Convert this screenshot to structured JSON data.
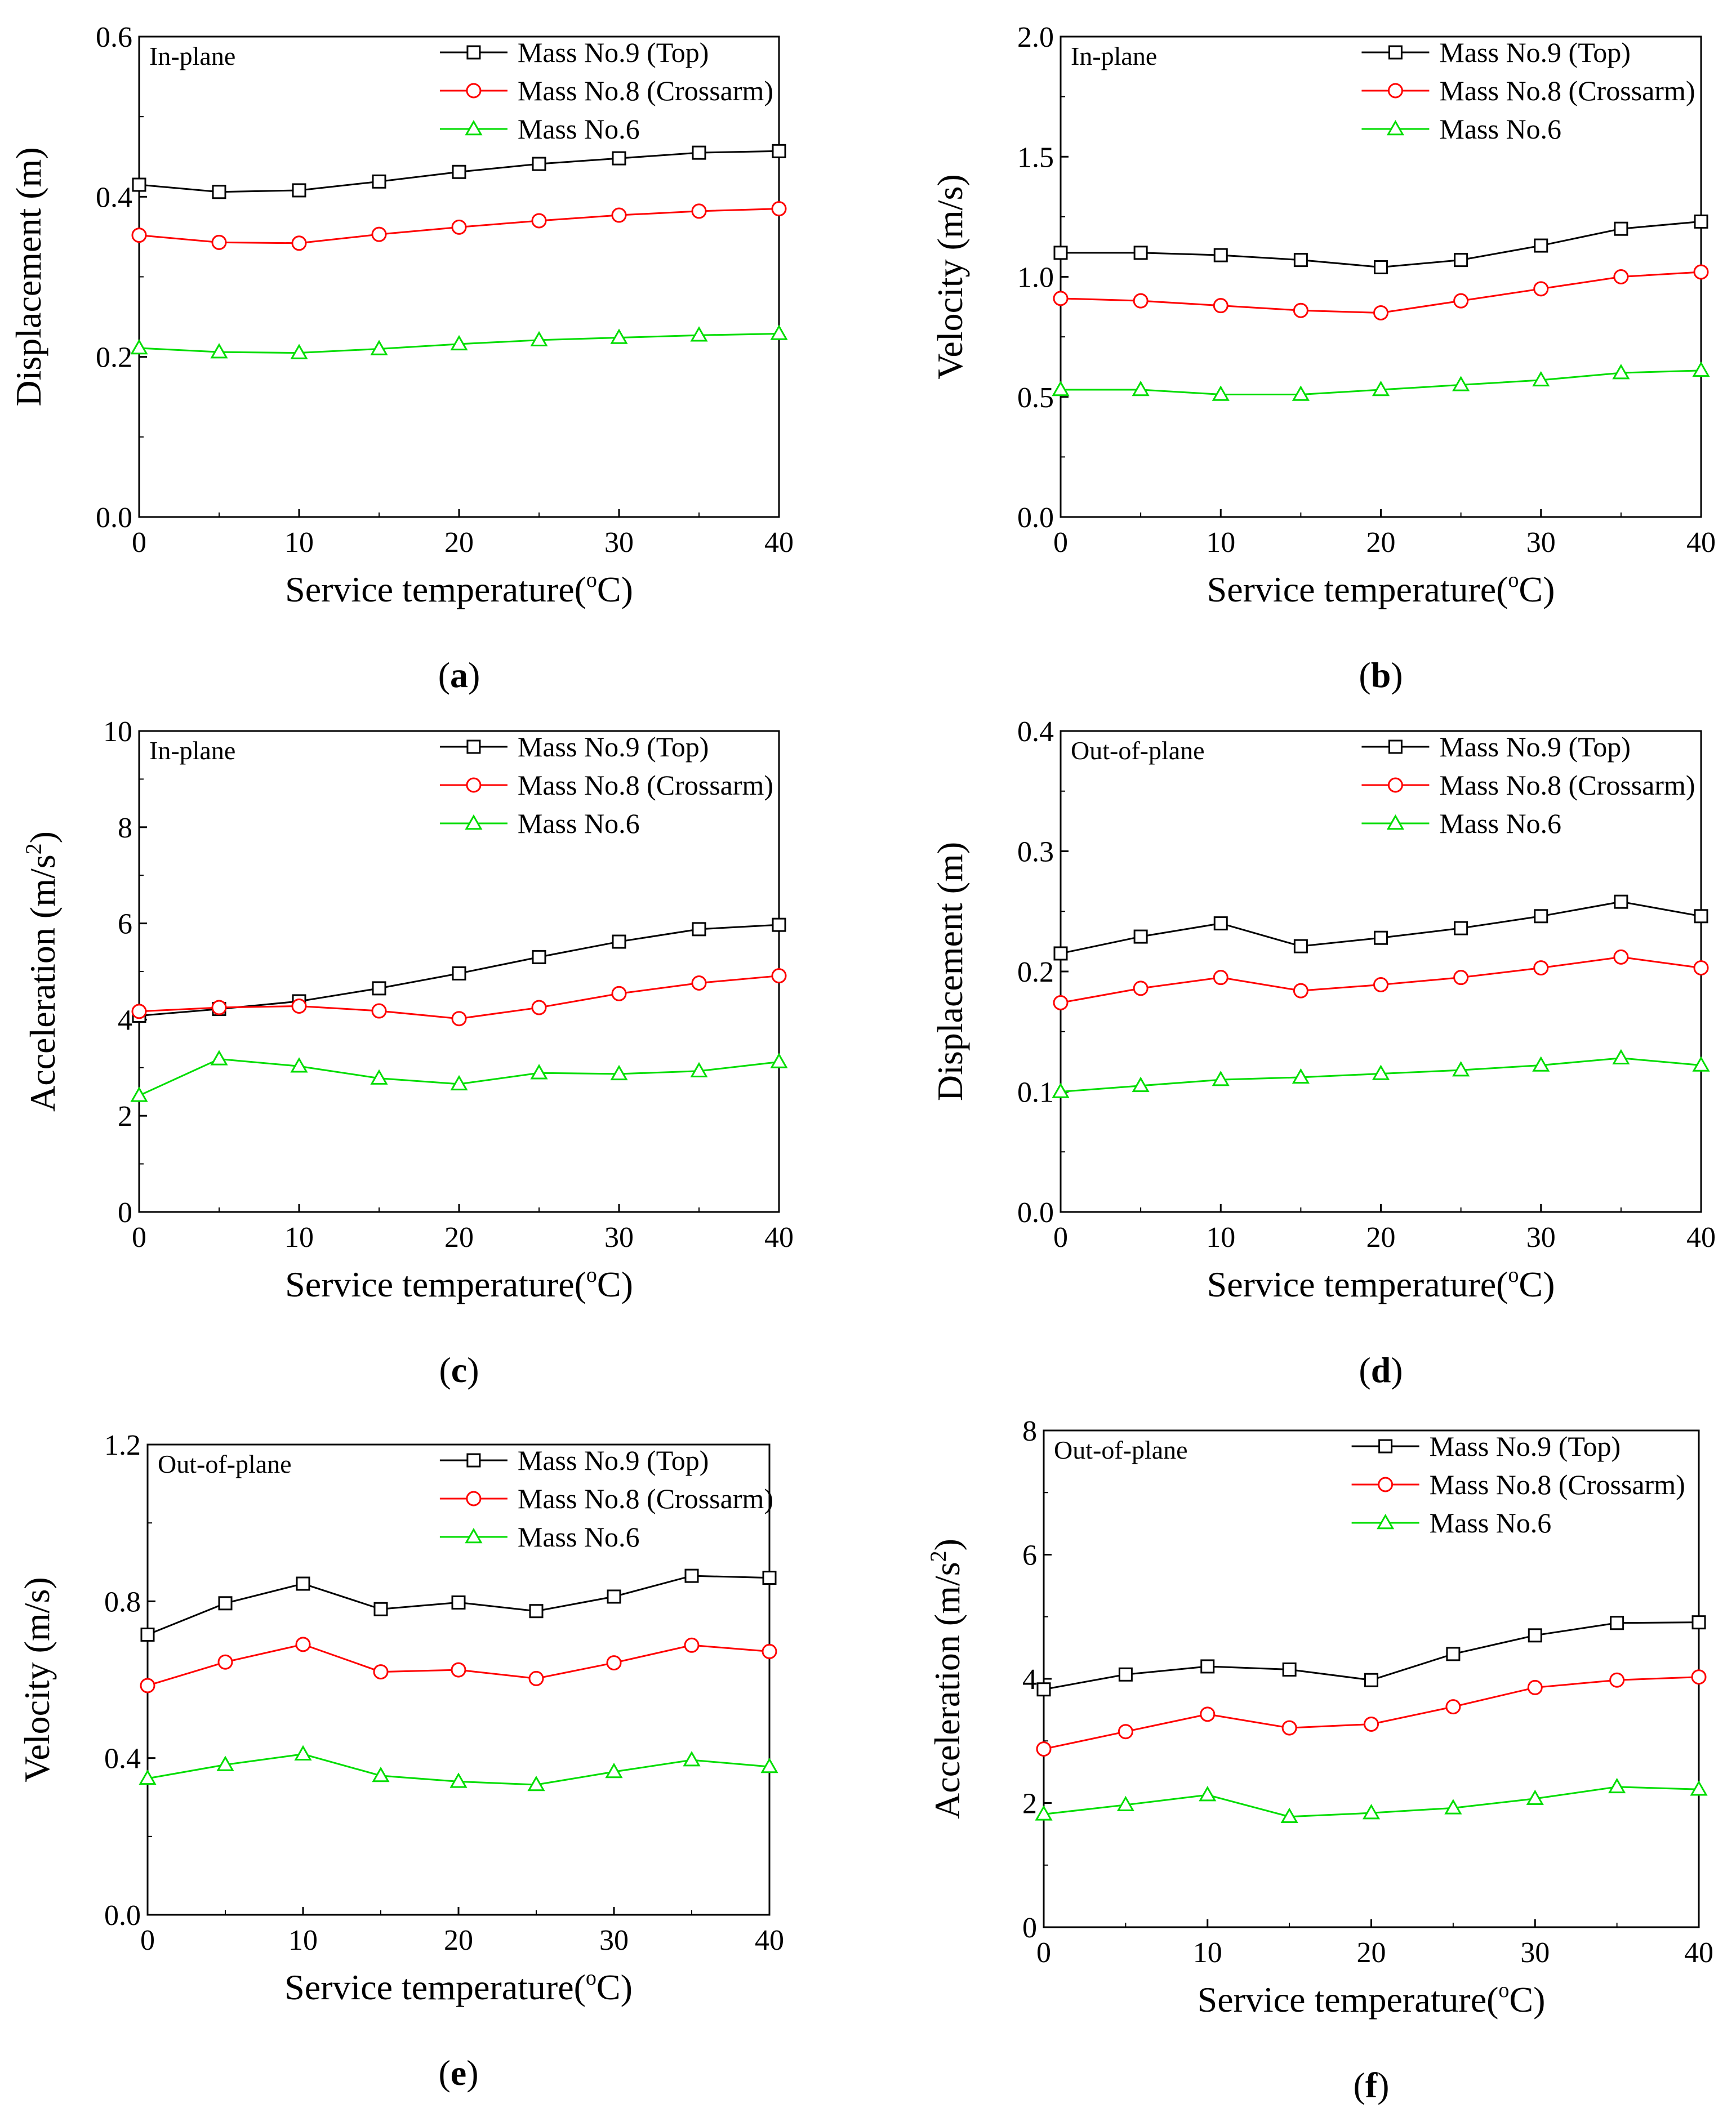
{
  "figure": {
    "series_colors": {
      "top": "#000000",
      "crossarm": "#ff0000",
      "m6": "#00dd00"
    }
  },
  "chart_data": [
    {
      "id": "a",
      "type": "line",
      "panel_label": "a",
      "annotation": "In-plane",
      "xlabel": "Service temperature(°C)",
      "xlabel_main": "Service temperature(",
      "xlabel_deg": "o",
      "xlabel_tail": "C)",
      "ylabel": "Displacement (m)",
      "ylabel_main": "Displacement (m)",
      "ylabel_sup": "",
      "ylabel_tail": "",
      "xlim": [
        0,
        40
      ],
      "ylim": [
        0,
        0.6
      ],
      "xticks": [
        0,
        10,
        20,
        30,
        40
      ],
      "xtick_labels": [
        "0",
        "10",
        "20",
        "30",
        "40"
      ],
      "yticks": [
        0,
        0.2,
        0.4,
        0.6
      ],
      "ytick_labels": [
        "0.0",
        "0.2",
        "0.4",
        "0.6"
      ],
      "x": [
        0,
        5,
        10,
        15,
        20,
        25,
        30,
        35,
        40
      ],
      "series": [
        {
          "name": "Mass No.9 (Top)",
          "marker": "square",
          "color": "#000000",
          "values": [
            0.415,
            0.406,
            0.408,
            0.419,
            0.431,
            0.441,
            0.448,
            0.455,
            0.457
          ]
        },
        {
          "name": "Mass No.8 (Crossarm)",
          "marker": "circle",
          "color": "#ff0000",
          "values": [
            0.352,
            0.343,
            0.342,
            0.353,
            0.362,
            0.37,
            0.377,
            0.382,
            0.385
          ]
        },
        {
          "name": "Mass No.6",
          "marker": "triangle",
          "color": "#00dd00",
          "values": [
            0.211,
            0.206,
            0.205,
            0.21,
            0.216,
            0.221,
            0.224,
            0.227,
            0.229
          ]
        }
      ]
    },
    {
      "id": "b",
      "type": "line",
      "panel_label": "b",
      "annotation": "In-plane",
      "xlabel": "Service temperature(°C)",
      "xlabel_main": "Service temperature(",
      "xlabel_deg": "o",
      "xlabel_tail": "C)",
      "ylabel": "Velocity (m/s)",
      "ylabel_main": "Velocity (m/s)",
      "ylabel_sup": "",
      "ylabel_tail": "",
      "xlim": [
        0,
        40
      ],
      "ylim": [
        0,
        2.0
      ],
      "xticks": [
        0,
        10,
        20,
        30,
        40
      ],
      "xtick_labels": [
        "0",
        "10",
        "20",
        "30",
        "40"
      ],
      "yticks": [
        0,
        0.5,
        1.0,
        1.5,
        2.0
      ],
      "ytick_labels": [
        "0.0",
        "0.5",
        "1.0",
        "1.5",
        "2.0"
      ],
      "x": [
        0,
        5,
        10,
        15,
        20,
        25,
        30,
        35,
        40
      ],
      "series": [
        {
          "name": "Mass No.9 (Top)",
          "marker": "square",
          "color": "#000000",
          "values": [
            1.1,
            1.1,
            1.09,
            1.07,
            1.04,
            1.07,
            1.13,
            1.2,
            1.23
          ]
        },
        {
          "name": "Mass No.8 (Crossarm)",
          "marker": "circle",
          "color": "#ff0000",
          "values": [
            0.91,
            0.9,
            0.88,
            0.86,
            0.85,
            0.9,
            0.95,
            1.0,
            1.02
          ]
        },
        {
          "name": "Mass No.6",
          "marker": "triangle",
          "color": "#00dd00",
          "values": [
            0.53,
            0.53,
            0.51,
            0.51,
            0.53,
            0.55,
            0.57,
            0.6,
            0.61
          ]
        }
      ]
    },
    {
      "id": "c",
      "type": "line",
      "panel_label": "c",
      "annotation": "In-plane",
      "xlabel": "Service temperature(°C)",
      "xlabel_main": "Service temperature(",
      "xlabel_deg": "o",
      "xlabel_tail": "C)",
      "ylabel": "Acceleration (m/s²)",
      "ylabel_main": "Acceleration (m/s",
      "ylabel_sup": "2",
      "ylabel_tail": ")",
      "xlim": [
        0,
        40
      ],
      "ylim": [
        0,
        10
      ],
      "xticks": [
        0,
        10,
        20,
        30,
        40
      ],
      "xtick_labels": [
        "0",
        "10",
        "20",
        "30",
        "40"
      ],
      "yticks": [
        0,
        2,
        4,
        6,
        8,
        10
      ],
      "ytick_labels": [
        "0",
        "2",
        "4",
        "6",
        "8",
        "10"
      ],
      "x": [
        0,
        5,
        10,
        15,
        20,
        25,
        30,
        35,
        40
      ],
      "series": [
        {
          "name": "Mass No.9 (Top)",
          "marker": "square",
          "color": "#000000",
          "values": [
            4.08,
            4.22,
            4.38,
            4.65,
            4.96,
            5.3,
            5.62,
            5.88,
            5.97
          ]
        },
        {
          "name": "Mass No.8 (Crossarm)",
          "marker": "circle",
          "color": "#ff0000",
          "values": [
            4.17,
            4.25,
            4.28,
            4.18,
            4.02,
            4.25,
            4.54,
            4.76,
            4.91
          ]
        },
        {
          "name": "Mass No.6",
          "marker": "triangle",
          "color": "#00dd00",
          "values": [
            2.42,
            3.18,
            3.03,
            2.78,
            2.66,
            2.89,
            2.87,
            2.93,
            3.12
          ]
        }
      ]
    },
    {
      "id": "d",
      "type": "line",
      "panel_label": "d",
      "annotation": "Out-of-plane",
      "xlabel": "Service temperature(°C)",
      "xlabel_main": "Service temperature(",
      "xlabel_deg": "o",
      "xlabel_tail": "C)",
      "ylabel": "Displacement (m)",
      "ylabel_main": "Displacement (m)",
      "ylabel_sup": "",
      "ylabel_tail": "",
      "xlim": [
        0,
        40
      ],
      "ylim": [
        0,
        0.4
      ],
      "xticks": [
        0,
        10,
        20,
        30,
        40
      ],
      "xtick_labels": [
        "0",
        "10",
        "20",
        "30",
        "40"
      ],
      "yticks": [
        0,
        0.1,
        0.2,
        0.3,
        0.4
      ],
      "ytick_labels": [
        "0.0",
        "0.1",
        "0.2",
        "0.3",
        "0.4"
      ],
      "x": [
        0,
        5,
        10,
        15,
        20,
        25,
        30,
        35,
        40
      ],
      "series": [
        {
          "name": "Mass No.9 (Top)",
          "marker": "square",
          "color": "#000000",
          "values": [
            0.215,
            0.229,
            0.24,
            0.221,
            0.228,
            0.236,
            0.246,
            0.258,
            0.246
          ]
        },
        {
          "name": "Mass No.8 (Crossarm)",
          "marker": "circle",
          "color": "#ff0000",
          "values": [
            0.174,
            0.186,
            0.195,
            0.184,
            0.189,
            0.195,
            0.203,
            0.212,
            0.203
          ]
        },
        {
          "name": "Mass No.6",
          "marker": "triangle",
          "color": "#00dd00",
          "values": [
            0.1,
            0.105,
            0.11,
            0.112,
            0.115,
            0.118,
            0.122,
            0.128,
            0.122
          ]
        }
      ]
    },
    {
      "id": "e",
      "type": "line",
      "panel_label": "e",
      "annotation": "Out-of-plane",
      "xlabel": "Service temperature(°C)",
      "xlabel_main": "Service temperature(",
      "xlabel_deg": "o",
      "xlabel_tail": "C)",
      "ylabel": "Velocity (m/s)",
      "ylabel_main": "Velocity (m/s)",
      "ylabel_sup": "",
      "ylabel_tail": "",
      "xlim": [
        0,
        40
      ],
      "ylim": [
        0,
        1.2
      ],
      "xticks": [
        0,
        10,
        20,
        30,
        40
      ],
      "xtick_labels": [
        "0",
        "10",
        "20",
        "30",
        "40"
      ],
      "yticks": [
        0,
        0.4,
        0.8,
        1.2
      ],
      "ytick_labels": [
        "0.0",
        "0.4",
        "0.8",
        "1.2"
      ],
      "x": [
        0,
        5,
        10,
        15,
        20,
        25,
        30,
        35,
        40
      ],
      "series": [
        {
          "name": "Mass No.9 (Top)",
          "marker": "square",
          "color": "#000000",
          "values": [
            0.715,
            0.795,
            0.845,
            0.78,
            0.797,
            0.775,
            0.812,
            0.865,
            0.86
          ]
        },
        {
          "name": "Mass No.8 (Crossarm)",
          "marker": "circle",
          "color": "#ff0000",
          "values": [
            0.585,
            0.645,
            0.69,
            0.62,
            0.625,
            0.603,
            0.643,
            0.688,
            0.672
          ]
        },
        {
          "name": "Mass No.6",
          "marker": "triangle",
          "color": "#00dd00",
          "values": [
            0.348,
            0.383,
            0.41,
            0.355,
            0.34,
            0.332,
            0.365,
            0.395,
            0.378
          ]
        }
      ]
    },
    {
      "id": "f",
      "type": "line",
      "panel_label": "f",
      "annotation": "Out-of-plane",
      "xlabel": "Service temperature(°C)",
      "xlabel_main": "Service temperature(",
      "xlabel_deg": "o",
      "xlabel_tail": "C)",
      "ylabel": "Acceleration (m/s²)",
      "ylabel_main": "Acceleration (m/s",
      "ylabel_sup": "2",
      "ylabel_tail": ")",
      "xlim": [
        0,
        40
      ],
      "ylim": [
        0,
        8
      ],
      "xticks": [
        0,
        10,
        20,
        30,
        40
      ],
      "xtick_labels": [
        "0",
        "10",
        "20",
        "30",
        "40"
      ],
      "yticks": [
        0,
        2,
        4,
        6,
        8
      ],
      "ytick_labels": [
        "0",
        "2",
        "4",
        "6",
        "8"
      ],
      "x": [
        0,
        5,
        10,
        15,
        20,
        25,
        30,
        35,
        40
      ],
      "series": [
        {
          "name": "Mass No.9 (Top)",
          "marker": "square",
          "color": "#000000",
          "values": [
            3.83,
            4.07,
            4.2,
            4.15,
            3.98,
            4.4,
            4.7,
            4.9,
            4.91
          ]
        },
        {
          "name": "Mass No.8 (Crossarm)",
          "marker": "circle",
          "color": "#ff0000",
          "values": [
            2.87,
            3.15,
            3.43,
            3.21,
            3.27,
            3.55,
            3.86,
            3.98,
            4.03
          ]
        },
        {
          "name": "Mass No.6",
          "marker": "triangle",
          "color": "#00dd00",
          "values": [
            1.82,
            1.97,
            2.13,
            1.78,
            1.84,
            1.92,
            2.07,
            2.26,
            2.22
          ]
        }
      ]
    }
  ]
}
